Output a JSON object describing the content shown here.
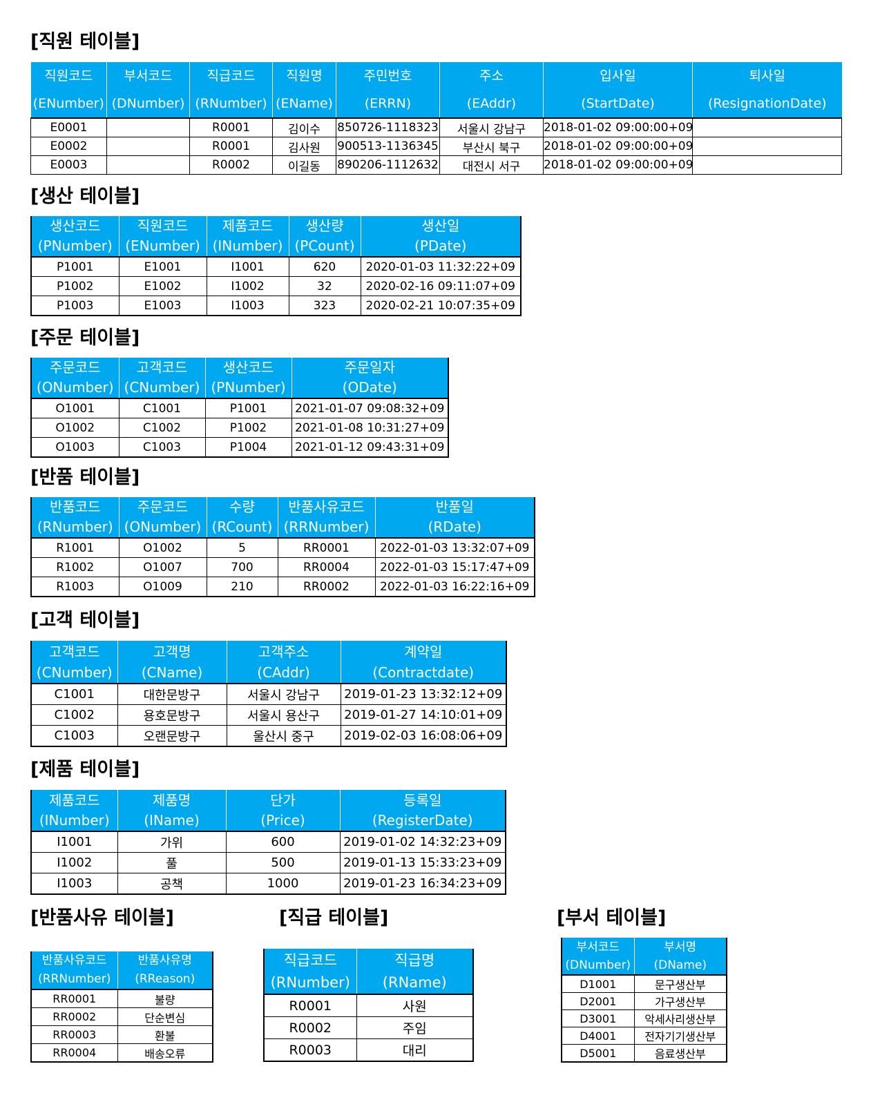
{
  "tables": [
    {
      "title": "[직원 테이블]",
      "headers": [
        [
          "직원코드",
          "(ENumber)"
        ],
        [
          "부서코드",
          "(DNumber)"
        ],
        [
          "직급코드",
          "(RNumber)"
        ],
        [
          "직원명",
          "(EName)"
        ],
        [
          "주민번호",
          "(ERRN)"
        ],
        [
          "주소",
          "(EAddr)"
        ],
        [
          "입사일",
          "(StartDate)"
        ],
        [
          "퇴사일",
          "(ResignationDate)"
        ]
      ],
      "rows": [
        [
          "E0001",
          "",
          "R0001",
          "김이수",
          "850726-1118323",
          "서울시 강남구",
          "2018-01-02 09:00:00+09",
          ""
        ],
        [
          "E0002",
          "",
          "R0001",
          "김사원",
          "900513-1136345",
          "부산시 북구",
          "2018-01-02 09:00:00+09",
          ""
        ],
        [
          "E0003",
          "",
          "R0002",
          "이길동",
          "890206-1112632",
          "대전시 서구",
          "2018-01-02 09:00:00+09",
          ""
        ]
      ]
    },
    {
      "title": "[생산 테이블]",
      "headers": [
        [
          "생산코드",
          "(PNumber)"
        ],
        [
          "직원코드",
          "(ENumber)"
        ],
        [
          "제품코드",
          "(INumber)"
        ],
        [
          "생산량",
          "(PCount)"
        ],
        [
          "생산일",
          "(PDate)"
        ]
      ],
      "rows": [
        [
          "P1001",
          "E1001",
          "I1001",
          "620",
          "2020-01-03 11:32:22+09"
        ],
        [
          "P1002",
          "E1002",
          "I1002",
          "32",
          "2020-02-16 09:11:07+09"
        ],
        [
          "P1003",
          "E1003",
          "I1003",
          "323",
          "2020-02-21 10:07:35+09"
        ]
      ]
    },
    {
      "title": "[주문 테이블]",
      "headers": [
        [
          "주문코드",
          "(ONumber)"
        ],
        [
          "고객코드",
          "(CNumber)"
        ],
        [
          "생산코드",
          "(PNumber)"
        ],
        [
          "주문일자",
          "(ODate)"
        ]
      ],
      "rows": [
        [
          "O1001",
          "C1001",
          "P1001",
          "2021-01-07 09:08:32+09"
        ],
        [
          "O1002",
          "C1002",
          "P1002",
          "2021-01-08 10:31:27+09"
        ],
        [
          "O1003",
          "C1003",
          "P1004",
          "2021-01-12 09:43:31+09"
        ]
      ]
    },
    {
      "title": "[반품 테이블]",
      "headers": [
        [
          "반품코드",
          "(RNumber)"
        ],
        [
          "주문코드",
          "(ONumber)"
        ],
        [
          "수량",
          "(RCount)"
        ],
        [
          "반품사유코드",
          "(RRNumber)"
        ],
        [
          "반품일",
          "(RDate)"
        ]
      ],
      "rows": [
        [
          "R1001",
          "O1002",
          "5",
          "RR0001",
          "2022-01-03 13:32:07+09"
        ],
        [
          "R1002",
          "O1007",
          "700",
          "RR0004",
          "2022-01-03 15:17:47+09"
        ],
        [
          "R1003",
          "O1009",
          "210",
          "RR0002",
          "2022-01-03 16:22:16+09"
        ]
      ]
    },
    {
      "title": "[고객 테이블]",
      "headers": [
        [
          "고객코드",
          "(CNumber)"
        ],
        [
          "고객명",
          "(CName)"
        ],
        [
          "고객주소",
          "(CAddr)"
        ],
        [
          "계약일",
          "(Contractdate)"
        ]
      ],
      "rows": [
        [
          "C1001",
          "대한문방구",
          "서울시 강남구",
          "2019-01-23 13:32:12+09"
        ],
        [
          "C1002",
          "용호문방구",
          "서울시 용산구",
          "2019-01-27 14:10:01+09"
        ],
        [
          "C1003",
          "오랜문방구",
          "울산시 중구",
          "2019-02-03 16:08:06+09"
        ]
      ]
    },
    {
      "title": "[제품 테이블]",
      "headers": [
        [
          "제품코드",
          "(INumber)"
        ],
        [
          "제품명",
          "(IName)"
        ],
        [
          "단가",
          "(Price)"
        ],
        [
          "등록일",
          "(RegisterDate)"
        ]
      ],
      "rows": [
        [
          "I1001",
          "가위",
          "600",
          "2019-01-02 14:32:23+09"
        ],
        [
          "I1002",
          "풀",
          "500",
          "2019-01-13 15:33:23+09"
        ],
        [
          "I1003",
          "공책",
          "1000",
          "2019-01-23 16:34:23+09"
        ]
      ]
    },
    {
      "title": "[반품사유 테이블]",
      "headers": [
        [
          "반품사유코드",
          "(RRNumber)"
        ],
        [
          "반품사유명",
          "(RReason)"
        ]
      ],
      "rows": [
        [
          "RR0001",
          "불량"
        ],
        [
          "RR0002",
          "단순변심"
        ],
        [
          "RR0003",
          "환불"
        ],
        [
          "RR0004",
          "배송오류"
        ]
      ]
    },
    {
      "title": "[직급 테이블]",
      "headers": [
        [
          "직급코드",
          "(RNumber)"
        ],
        [
          "직급명",
          "(RName)"
        ]
      ],
      "rows": [
        [
          "R0001",
          "사원"
        ],
        [
          "R0002",
          "주임"
        ],
        [
          "R0003",
          "대리"
        ]
      ]
    },
    {
      "title": "[부서 테이블]",
      "headers": [
        [
          "부서코드",
          "(DNumber)"
        ],
        [
          "부서명",
          "(DName)"
        ]
      ],
      "rows": [
        [
          "D1001",
          "문구생산부"
        ],
        [
          "D2001",
          "가구생산부"
        ],
        [
          "D3001",
          "악세사리생산부"
        ],
        [
          "D4001",
          "전자기기생산부"
        ],
        [
          "D5001",
          "음료생산부"
        ]
      ]
    }
  ],
  "colors": {
    "header_bg": "#00a8f0",
    "header_text": "#ffffff",
    "border": "#000000"
  }
}
